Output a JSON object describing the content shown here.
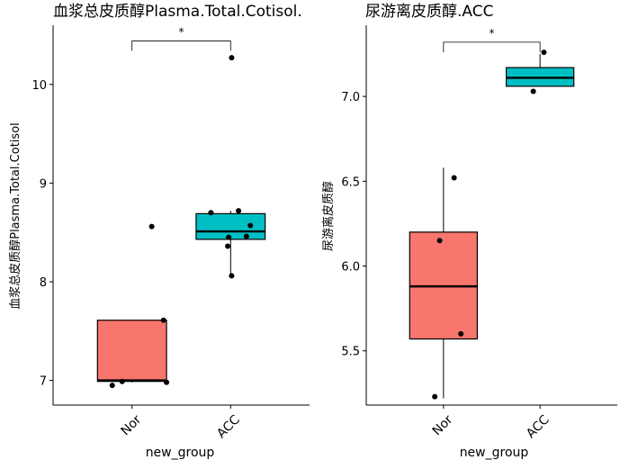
{
  "chart_data": [
    {
      "type": "box",
      "title": "血浆总皮质醇Plasma.Total.Cotisol.",
      "xlabel": "new_group",
      "ylabel": "血浆总皮质醇Plasma.Total.Cotisol",
      "categories": [
        "Nor",
        "ACC"
      ],
      "ylim": [
        6.75,
        10.6
      ],
      "yticks": [
        7,
        8,
        9,
        10
      ],
      "ytick_labels": [
        "7",
        "8",
        "9",
        "10"
      ],
      "boxes": [
        {
          "category": "Nor",
          "min": 6.98,
          "q1": 6.99,
          "median": 7.0,
          "q3": 7.61,
          "max": 7.61,
          "fill": "#F8766D"
        },
        {
          "category": "ACC",
          "min": 8.06,
          "q1": 8.43,
          "median": 8.51,
          "q3": 8.69,
          "max": 8.72,
          "fill": "#00BFC4"
        }
      ],
      "outliers": [
        {
          "category": "ACC",
          "y": 10.27
        }
      ],
      "points": [
        {
          "category": "Nor",
          "dx": 0.2,
          "y": 8.56
        },
        {
          "category": "Nor",
          "dx": 0.32,
          "y": 7.61
        },
        {
          "category": "Nor",
          "dx": -0.2,
          "y": 6.95
        },
        {
          "category": "Nor",
          "dx": -0.1,
          "y": 6.99
        },
        {
          "category": "Nor",
          "dx": 0.35,
          "y": 6.98
        },
        {
          "category": "ACC",
          "dx": 0.01,
          "y": 10.27
        },
        {
          "category": "ACC",
          "dx": -0.2,
          "y": 8.7
        },
        {
          "category": "ACC",
          "dx": 0.08,
          "y": 8.72
        },
        {
          "category": "ACC",
          "dx": 0.2,
          "y": 8.57
        },
        {
          "category": "ACC",
          "dx": -0.02,
          "y": 8.45
        },
        {
          "category": "ACC",
          "dx": 0.16,
          "y": 8.46
        },
        {
          "category": "ACC",
          "dx": -0.03,
          "y": 8.36
        },
        {
          "category": "ACC",
          "dx": 0.01,
          "y": 8.06
        }
      ],
      "significance": {
        "from": "Nor",
        "to": "ACC",
        "label": "*",
        "y": 10.44,
        "tick_down": 10.34
      }
    },
    {
      "type": "box",
      "title": "尿游离皮质醇.ACC",
      "xlabel": "new_group",
      "ylabel": "尿游离皮质醇",
      "categories": [
        "Nor",
        "ACC"
      ],
      "ylim": [
        5.18,
        7.42
      ],
      "yticks": [
        5.5,
        6.0,
        6.5,
        7.0
      ],
      "ytick_labels": [
        "5.5",
        "6.0",
        "6.5",
        "7.0"
      ],
      "boxes": [
        {
          "category": "Nor",
          "min": 5.22,
          "q1": 5.57,
          "median": 5.88,
          "q3": 6.2,
          "max": 6.58,
          "fill": "#F8766D"
        },
        {
          "category": "ACC",
          "min": 7.06,
          "q1": 7.06,
          "median": 7.11,
          "q3": 7.17,
          "max": 7.25,
          "fill": "#00BFC4"
        }
      ],
      "outliers": [],
      "points": [
        {
          "category": "Nor",
          "dx": -0.09,
          "y": 5.23
        },
        {
          "category": "Nor",
          "dx": 0.18,
          "y": 5.6
        },
        {
          "category": "Nor",
          "dx": -0.04,
          "y": 6.15
        },
        {
          "category": "Nor",
          "dx": 0.11,
          "y": 6.52
        },
        {
          "category": "ACC",
          "dx": -0.07,
          "y": 7.03
        },
        {
          "category": "ACC",
          "dx": 0.04,
          "y": 7.26
        }
      ],
      "significance": {
        "from": "Nor",
        "to": "ACC",
        "label": "*",
        "y": 7.32,
        "tick_down": 7.26
      }
    }
  ]
}
